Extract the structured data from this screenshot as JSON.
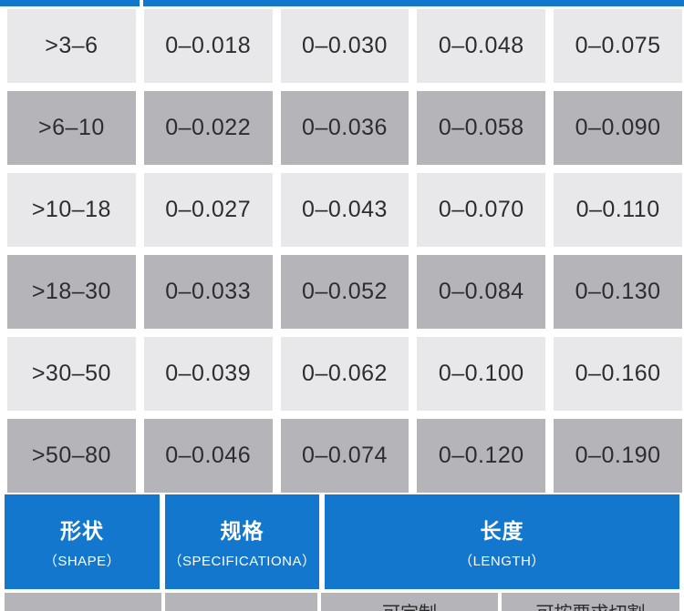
{
  "colors": {
    "header_blue": "#1377cd",
    "row_light": "#e8e8ea",
    "row_gray": "#b5b4b9",
    "text_dark": "#2d2d2f",
    "text_white": "#ffffff"
  },
  "tolerance_table": {
    "rows": [
      {
        "range": ">3–6",
        "values": [
          "0–0.018",
          "0–0.030",
          "0–0.048",
          "0–0.075"
        ]
      },
      {
        "range": ">6–10",
        "values": [
          "0–0.022",
          "0–0.036",
          "0–0.058",
          "0–0.090"
        ]
      },
      {
        "range": ">10–18",
        "values": [
          "0–0.027",
          "0–0.043",
          "0–0.070",
          "0–0.110"
        ]
      },
      {
        "range": ">18–30",
        "values": [
          "0–0.033",
          "0–0.052",
          "0–0.084",
          "0–0.130"
        ]
      },
      {
        "range": ">30–50",
        "values": [
          "0–0.039",
          "0–0.062",
          "0–0.100",
          "0–0.160"
        ]
      },
      {
        "range": ">50–80",
        "values": [
          "0–0.046",
          "0–0.074",
          "0–0.120",
          "0–0.190"
        ]
      }
    ]
  },
  "spec_header": {
    "columns": [
      {
        "zh": "形状",
        "en": "（SHAPE）"
      },
      {
        "zh": "规格",
        "en": "（SPECIFICATIONA）"
      },
      {
        "zh": "长度",
        "en": "（LENGTH）"
      }
    ]
  },
  "partial_row": {
    "cells": [
      "",
      "",
      "可定制",
      "可按要求切割"
    ]
  }
}
